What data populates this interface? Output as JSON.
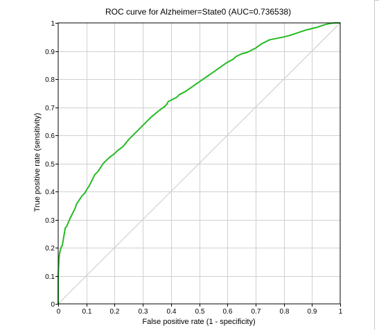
{
  "chart_data": {
    "type": "line",
    "title": "ROC curve for Alzheimer=State0 (AUC=0.736538)",
    "xlabel": "False positive rate (1 - specificity)",
    "ylabel": "True positive rate (sensitivity)",
    "xlim": [
      0,
      1
    ],
    "ylim": [
      0,
      1
    ],
    "x_ticks": [
      "0",
      "0.1",
      "0.2",
      "0.3",
      "0.4",
      "0.5",
      "0.6",
      "0.7",
      "0.8",
      "0.9",
      "1"
    ],
    "y_ticks": [
      "0",
      "0.1",
      "0.2",
      "0.3",
      "0.4",
      "0.5",
      "0.6",
      "0.7",
      "0.8",
      "0.9",
      "1"
    ],
    "grid": true,
    "series": [
      {
        "color": "#22bb22",
        "style": "solid",
        "x": [
          0,
          0,
          0.003,
          0.005,
          0.01,
          0.015,
          0.02,
          0.025,
          0.03,
          0.04,
          0.05,
          0.06,
          0.065,
          0.075,
          0.085,
          0.095,
          0.1,
          0.11,
          0.12,
          0.13,
          0.14,
          0.15,
          0.16,
          0.18,
          0.2,
          0.21,
          0.23,
          0.25,
          0.28,
          0.3,
          0.33,
          0.36,
          0.375,
          0.385,
          0.39,
          0.4,
          0.42,
          0.43,
          0.45,
          0.5,
          0.55,
          0.6,
          0.62,
          0.63,
          0.64,
          0.65,
          0.67,
          0.7,
          0.72,
          0.75,
          0.8,
          0.82,
          0.85,
          0.88,
          0.9,
          0.92,
          0.94,
          0.96,
          0.98,
          1
        ],
        "y": [
          0,
          0.1,
          0.16,
          0.18,
          0.2,
          0.21,
          0.24,
          0.27,
          0.275,
          0.3,
          0.32,
          0.34,
          0.355,
          0.37,
          0.385,
          0.395,
          0.405,
          0.42,
          0.44,
          0.46,
          0.47,
          0.485,
          0.5,
          0.52,
          0.535,
          0.545,
          0.56,
          0.585,
          0.615,
          0.635,
          0.665,
          0.69,
          0.7,
          0.71,
          0.72,
          0.725,
          0.735,
          0.745,
          0.755,
          0.79,
          0.825,
          0.86,
          0.87,
          0.88,
          0.885,
          0.89,
          0.895,
          0.91,
          0.925,
          0.94,
          0.95,
          0.955,
          0.965,
          0.975,
          0.98,
          0.985,
          0.992,
          0.997,
          1,
          1
        ]
      },
      {
        "color": "#c8c8c8",
        "style": "diagonal",
        "x": [
          0,
          1
        ],
        "y": [
          0,
          1
        ]
      }
    ],
    "colors": {
      "curve": "#22bb22",
      "diagonal": "#c8c8c8",
      "grid": "#d0d0d0",
      "axis": "#000000"
    }
  }
}
